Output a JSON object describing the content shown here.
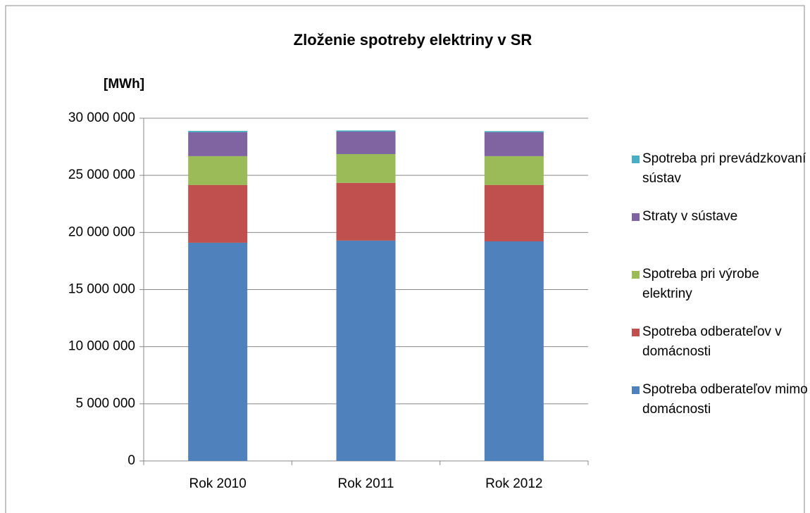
{
  "chart_data": {
    "type": "stacked_bar",
    "title": "Zloženie spotreby elektriny v SR",
    "y_label": "[MWh]",
    "categories": [
      "Rok 2010",
      "Rok 2011",
      "Rok 2012"
    ],
    "series": [
      {
        "name": "Spotreba odberateľov mimo domácnosti",
        "color": "#4f81bd",
        "values": [
          19100000,
          19290000,
          19220000
        ]
      },
      {
        "name": "Spotreba odberateľov v domácnosti",
        "color": "#c0504d",
        "values": [
          5050000,
          5050000,
          4930000
        ]
      },
      {
        "name": "Spotreba pri výrobe elektriny",
        "color": "#9bbb59",
        "values": [
          2530000,
          2520000,
          2530000
        ]
      },
      {
        "name": "Straty v sústave",
        "color": "#8064a2",
        "values": [
          2090000,
          1970000,
          2090000
        ]
      },
      {
        "name": "Spotreba pri prevádzkovaní sústav",
        "color": "#4bacc6",
        "values": [
          120000,
          100000,
          100000
        ]
      }
    ],
    "ylim": [
      0,
      30000000
    ],
    "yticks": [
      0,
      {
        "value": 5000000,
        "label": "5 000 000"
      },
      {
        "value": 10000000,
        "label": "10 000 000"
      },
      {
        "value": 15000000,
        "label": "15 000 000"
      },
      {
        "value": 20000000,
        "label": "20 000 000"
      },
      {
        "value": 25000000,
        "label": "25 000 000"
      },
      {
        "value": 30000000,
        "label": "30 000 000"
      }
    ],
    "grid": true,
    "legend": "right"
  }
}
